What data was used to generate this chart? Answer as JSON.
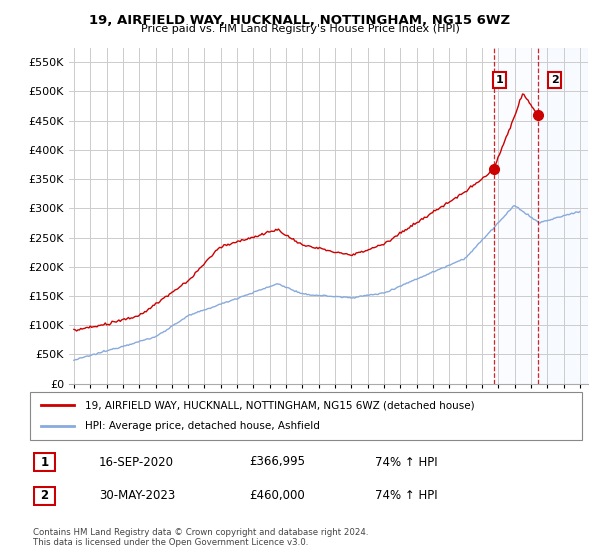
{
  "title": "19, AIRFIELD WAY, HUCKNALL, NOTTINGHAM, NG15 6WZ",
  "subtitle": "Price paid vs. HM Land Registry's House Price Index (HPI)",
  "ylabel_ticks": [
    "£0",
    "£50K",
    "£100K",
    "£150K",
    "£200K",
    "£250K",
    "£300K",
    "£350K",
    "£400K",
    "£450K",
    "£500K",
    "£550K"
  ],
  "ytick_values": [
    0,
    50000,
    100000,
    150000,
    200000,
    250000,
    300000,
    350000,
    400000,
    450000,
    500000,
    550000
  ],
  "ylim": [
    0,
    575000
  ],
  "xlim_start": 1994.7,
  "xlim_end": 2026.5,
  "xticks": [
    1995,
    1996,
    1997,
    1998,
    1999,
    2000,
    2001,
    2002,
    2003,
    2004,
    2005,
    2006,
    2007,
    2008,
    2009,
    2010,
    2011,
    2012,
    2013,
    2014,
    2015,
    2016,
    2017,
    2018,
    2019,
    2020,
    2021,
    2022,
    2023,
    2024,
    2025,
    2026
  ],
  "sale1_date": 2020.71,
  "sale1_price": 366995,
  "sale1_label": "1",
  "sale2_date": 2023.41,
  "sale2_price": 460000,
  "sale2_label": "2",
  "property_color": "#cc0000",
  "hpi_color": "#88aadd",
  "annotation_box_color": "#cc0000",
  "shaded_region_color": "#ddeeff",
  "legend_property": "19, AIRFIELD WAY, HUCKNALL, NOTTINGHAM, NG15 6WZ (detached house)",
  "legend_hpi": "HPI: Average price, detached house, Ashfield",
  "note1_label": "1",
  "note1_date": "16-SEP-2020",
  "note1_price": "£366,995",
  "note1_hpi": "74% ↑ HPI",
  "note2_label": "2",
  "note2_date": "30-MAY-2023",
  "note2_price": "£460,000",
  "note2_hpi": "74% ↑ HPI",
  "footer": "Contains HM Land Registry data © Crown copyright and database right 2024.\nThis data is licensed under the Open Government Licence v3.0.",
  "background_color": "#ffffff",
  "grid_color": "#cccccc"
}
